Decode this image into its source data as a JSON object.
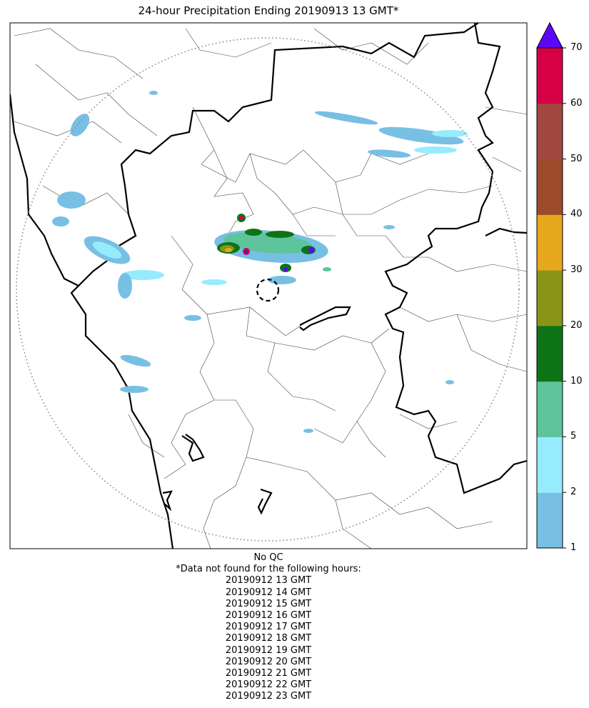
{
  "title": "24-hour Precipitation Ending 20190913 13 GMT*",
  "map": {
    "range_ring": "dotted",
    "radar_marker": "dashed-circle",
    "precip_colors": [
      "#78bfe4",
      "#96ecfd",
      "#5ec49b",
      "#0e7317",
      "#8a9417",
      "#e6a81c",
      "#9b4b2b",
      "#a24740",
      "#d60046",
      "#5b08f6"
    ]
  },
  "colorbar": {
    "bounds": [
      1,
      2,
      5,
      10,
      20,
      30,
      40,
      50,
      60,
      70
    ],
    "tick_labels": [
      "1",
      "2",
      "5",
      "10",
      "20",
      "30",
      "40",
      "50",
      "60",
      "70"
    ],
    "colors": [
      "#78bfe4",
      "#96ecfd",
      "#5ec49b",
      "#0e7317",
      "#8a9417",
      "#e6a81c",
      "#9b4b2b",
      "#a24740",
      "#d60046"
    ],
    "extend_color": "#5b08f6"
  },
  "footer": {
    "qc": "No QC",
    "note": "*Data not found for the following hours:",
    "hours": [
      "20190912 13 GMT",
      "20190912 14 GMT",
      "20190912 15 GMT",
      "20190912 16 GMT",
      "20190912 17 GMT",
      "20190912 18 GMT",
      "20190912 19 GMT",
      "20190912 20 GMT",
      "20190912 21 GMT",
      "20190912 22 GMT",
      "20190912 23 GMT"
    ]
  }
}
